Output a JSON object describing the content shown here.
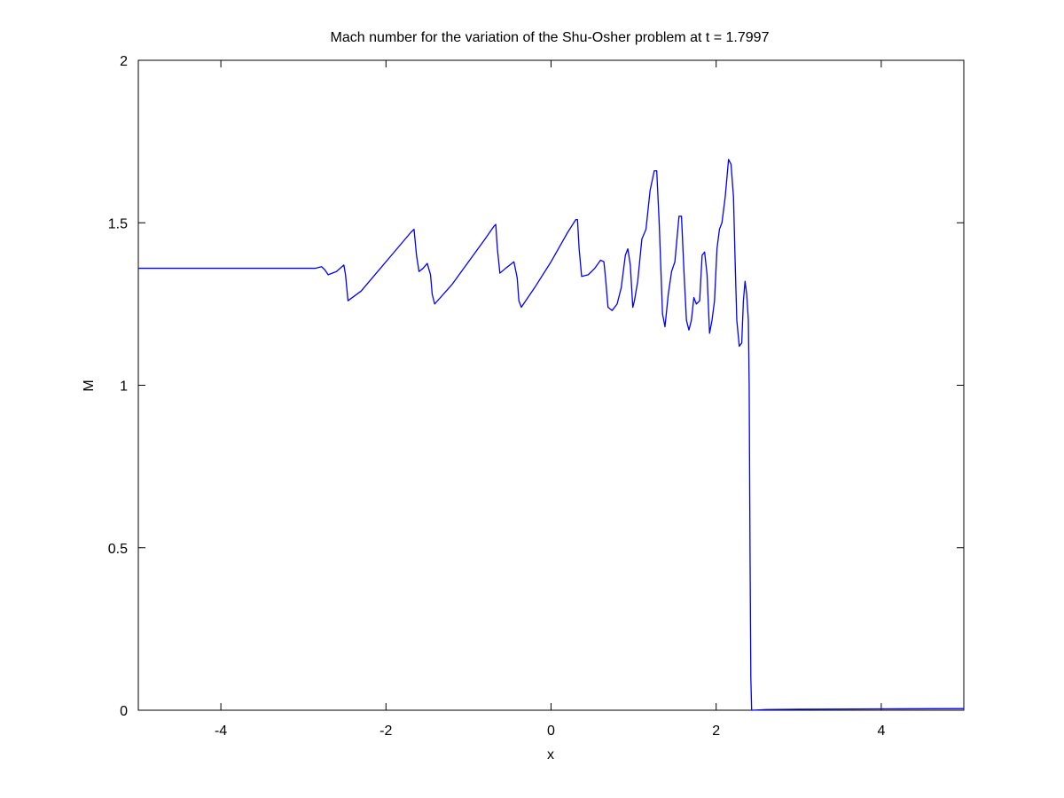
{
  "chart_data": {
    "type": "line",
    "title": "Mach number for the variation of the Shu-Osher problem at t = 1.7997",
    "xlabel": "x",
    "ylabel": "M",
    "xlim": [
      -5,
      5
    ],
    "ylim": [
      0,
      2
    ],
    "x_ticks": [
      -4,
      -2,
      0,
      2,
      4
    ],
    "x_tick_labels": [
      "-4",
      "-2",
      "0",
      "2",
      "4"
    ],
    "y_ticks": [
      0,
      0.5,
      1,
      1.5,
      2
    ],
    "y_tick_labels": [
      "0",
      "0.5",
      "1",
      "1.5",
      "2"
    ],
    "grid": false,
    "legend": "none",
    "series": [
      {
        "color": "#0000ff",
        "x": [
          -5.0,
          -2.85,
          -2.78,
          -2.74,
          -2.7,
          -2.6,
          -2.51,
          -2.49,
          -2.46,
          -2.3,
          -2.1,
          -1.9,
          -1.7,
          -1.66,
          -1.63,
          -1.6,
          -1.55,
          -1.5,
          -1.46,
          -1.44,
          -1.41,
          -1.2,
          -1.0,
          -0.8,
          -0.69,
          -0.67,
          -0.65,
          -0.62,
          -0.55,
          -0.45,
          -0.41,
          -0.39,
          -0.36,
          -0.2,
          0.0,
          0.2,
          0.3,
          0.32,
          0.34,
          0.37,
          0.45,
          0.53,
          0.6,
          0.64,
          0.66,
          0.69,
          0.74,
          0.8,
          0.85,
          0.9,
          0.93,
          0.96,
          0.99,
          1.01,
          1.05,
          1.1,
          1.15,
          1.2,
          1.25,
          1.28,
          1.31,
          1.35,
          1.38,
          1.42,
          1.46,
          1.5,
          1.55,
          1.58,
          1.61,
          1.64,
          1.67,
          1.7,
          1.73,
          1.76,
          1.8,
          1.83,
          1.86,
          1.89,
          1.92,
          1.95,
          1.98,
          2.01,
          2.04,
          2.07,
          2.11,
          2.15,
          2.18,
          2.21,
          2.23,
          2.25,
          2.28,
          2.31,
          2.33,
          2.35,
          2.37,
          2.39,
          2.4,
          2.41,
          2.42,
          2.43,
          2.44,
          2.6,
          3.0,
          4.0,
          5.0
        ],
        "y": [
          1.36,
          1.36,
          1.365,
          1.355,
          1.34,
          1.35,
          1.37,
          1.34,
          1.26,
          1.29,
          1.35,
          1.41,
          1.47,
          1.48,
          1.4,
          1.35,
          1.36,
          1.375,
          1.34,
          1.28,
          1.25,
          1.31,
          1.38,
          1.45,
          1.49,
          1.495,
          1.42,
          1.345,
          1.36,
          1.38,
          1.33,
          1.26,
          1.24,
          1.3,
          1.38,
          1.47,
          1.51,
          1.51,
          1.42,
          1.335,
          1.34,
          1.36,
          1.385,
          1.38,
          1.33,
          1.24,
          1.23,
          1.25,
          1.3,
          1.4,
          1.42,
          1.37,
          1.24,
          1.26,
          1.32,
          1.45,
          1.48,
          1.6,
          1.66,
          1.66,
          1.5,
          1.22,
          1.18,
          1.28,
          1.35,
          1.38,
          1.52,
          1.52,
          1.35,
          1.2,
          1.17,
          1.2,
          1.27,
          1.25,
          1.26,
          1.4,
          1.41,
          1.34,
          1.16,
          1.2,
          1.26,
          1.42,
          1.48,
          1.5,
          1.58,
          1.695,
          1.68,
          1.58,
          1.38,
          1.2,
          1.12,
          1.13,
          1.26,
          1.32,
          1.28,
          1.2,
          1.0,
          0.5,
          0.1,
          0.0,
          0.0,
          0.002,
          0.003,
          0.004,
          0.005
        ]
      }
    ]
  }
}
